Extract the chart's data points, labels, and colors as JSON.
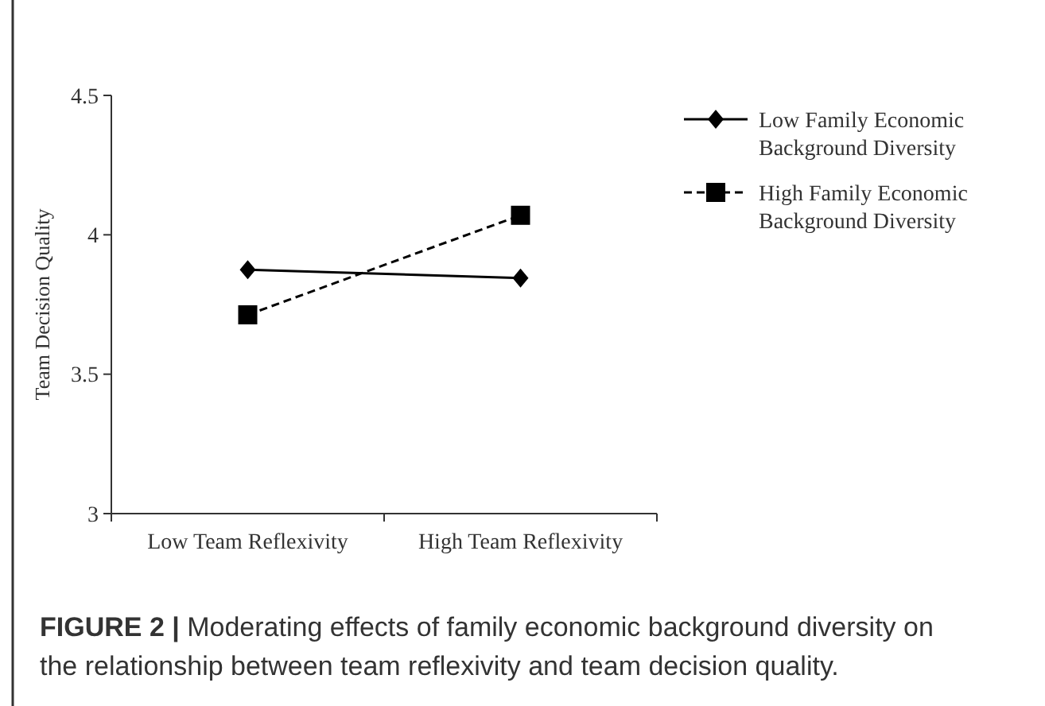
{
  "chart_data": {
    "type": "line",
    "ylabel": "Team Decision Quality",
    "categories": [
      "Low Team Reflexivity",
      "High Team Reflexivity"
    ],
    "series": [
      {
        "name": "Low Family Economic Background Diversity",
        "color": "#000000",
        "values": [
          3.875,
          3.845
        ],
        "marker": "diamond",
        "line_style": "solid"
      },
      {
        "name": "High Family Economic Background Diversity",
        "color": "#000000",
        "values": [
          3.713,
          4.07
        ],
        "marker": "square",
        "line_style": "dashed"
      }
    ],
    "ylim": [
      3,
      4.5
    ],
    "yticks": [
      3,
      3.5,
      4,
      4.5
    ],
    "grid": false,
    "legend": "top right",
    "annotations": [
      "FIGURE 2 | Moderating effects of family economic background diversity on the relationship between team reflexivity and team decision quality."
    ]
  }
}
